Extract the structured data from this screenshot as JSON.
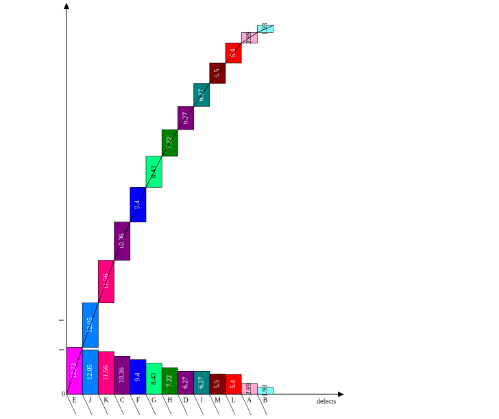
{
  "chart_data": {
    "type": "bar",
    "categories": [
      "E",
      "J",
      "K",
      "C",
      "F",
      "G",
      "H",
      "D",
      "I",
      "M",
      "L",
      "A",
      "B"
    ],
    "values": [
      12.72,
      12.05,
      11.56,
      10.36,
      9.4,
      8.43,
      7.22,
      6.27,
      6.27,
      5.5,
      5.4,
      2.89,
      1.93
    ],
    "colors": [
      "#ff00ff",
      "#0080ff",
      "#ff0080",
      "#800080",
      "#0000ff",
      "#00ff80",
      "#008000",
      "#800080",
      "#008080",
      "#800000",
      "#ff0000",
      "#ffaad4",
      "#80ffff"
    ],
    "x_label": "defects",
    "ylim": [
      0,
      100
    ],
    "yticks": [
      0
    ]
  }
}
